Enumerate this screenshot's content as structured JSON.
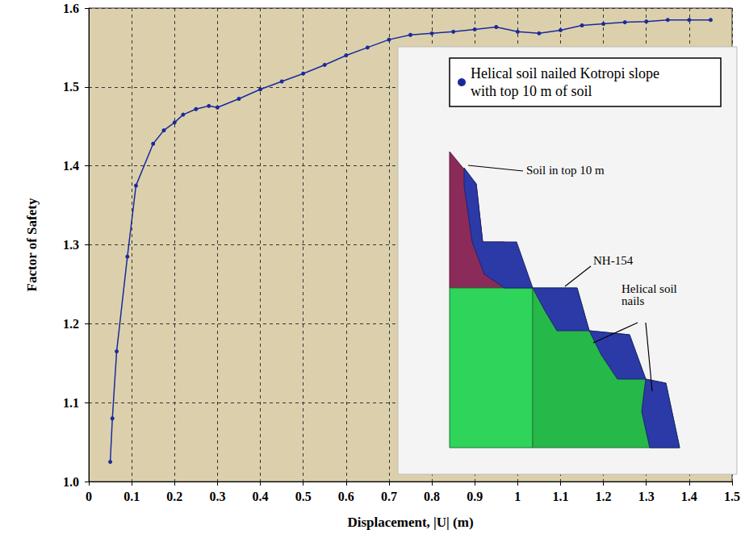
{
  "chart_data": {
    "type": "line",
    "x_label": "Displacement, |U| (m)",
    "y_label": "Factor of Safety",
    "x": [
      0.05,
      0.055,
      0.065,
      0.09,
      0.11,
      0.15,
      0.175,
      0.2,
      0.22,
      0.25,
      0.28,
      0.3,
      0.35,
      0.4,
      0.45,
      0.5,
      0.55,
      0.6,
      0.65,
      0.7,
      0.75,
      0.8,
      0.85,
      0.9,
      0.95,
      1.0,
      1.05,
      1.1,
      1.15,
      1.2,
      1.25,
      1.3,
      1.35,
      1.4,
      1.45
    ],
    "series": [
      {
        "name": "Helical soil nailed Kotropi slope with top 10 m of soil",
        "color": "#1a2a9c",
        "marker": "circle",
        "values": [
          1.025,
          1.08,
          1.165,
          1.285,
          1.375,
          1.428,
          1.445,
          1.455,
          1.465,
          1.472,
          1.476,
          1.474,
          1.485,
          1.497,
          1.507,
          1.517,
          1.528,
          1.54,
          1.55,
          1.56,
          1.566,
          1.568,
          1.57,
          1.573,
          1.576,
          1.57,
          1.568,
          1.572,
          1.578,
          1.58,
          1.582,
          1.583,
          1.585,
          1.585,
          1.585
        ]
      }
    ],
    "xlim": [
      0,
      1.5
    ],
    "xticks": [
      0,
      0.1,
      0.2,
      0.3,
      0.4,
      0.5,
      0.6,
      0.7,
      0.8,
      0.9,
      1.0,
      1.1,
      1.2,
      1.3,
      1.4,
      1.5
    ],
    "ylim": [
      1.0,
      1.6
    ],
    "yticks": [
      {
        "value": 1.0,
        "label": "1.0"
      },
      1.1,
      1.2,
      1.3,
      1.4,
      1.5,
      1.6
    ],
    "grid": true,
    "legend": "upper right",
    "annotations": [
      "Soil in top 10 m",
      "NH-154",
      "Helical soil nails"
    ]
  }
}
